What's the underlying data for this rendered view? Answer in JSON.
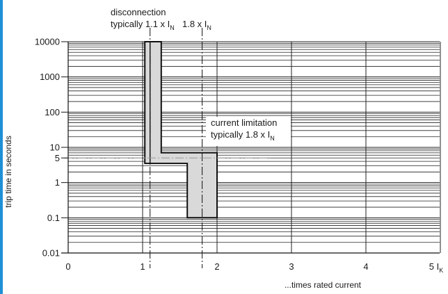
{
  "chart_data": {
    "type": "line",
    "title": "",
    "xlabel": "...times rated current",
    "ylabel": "trip time in seconds",
    "x_scale": "linear",
    "y_scale": "log",
    "xlim": [
      0,
      5
    ],
    "ylim": [
      0.01,
      10000
    ],
    "x_ticks": [
      {
        "value": 0,
        "label": "0"
      },
      {
        "value": 1,
        "label": "1"
      },
      {
        "value": 2,
        "label": "2"
      },
      {
        "value": 3,
        "label": "3"
      },
      {
        "value": 4,
        "label": "4"
      },
      {
        "value": 5,
        "label": "5 I"
      }
    ],
    "x_tick_last_subscript": "K",
    "y_ticks": [
      {
        "value": 10000,
        "label": "10000"
      },
      {
        "value": 1000,
        "label": "1000"
      },
      {
        "value": 100,
        "label": "100"
      },
      {
        "value": 10,
        "label": "10"
      },
      {
        "value": 5,
        "label": "5"
      },
      {
        "value": 1,
        "label": "1"
      },
      {
        "value": 0.1,
        "label": "0.1"
      },
      {
        "value": 0.01,
        "label": "0.01"
      }
    ],
    "grid": true,
    "trip_band": {
      "fill": "#d9d9d9",
      "outline": [
        {
          "x": 1.03,
          "y": 10000
        },
        {
          "x": 1.25,
          "y": 10000
        },
        {
          "x": 1.25,
          "y": 7
        },
        {
          "x": 2.0,
          "y": 7
        },
        {
          "x": 2.0,
          "y": 0.1
        },
        {
          "x": 1.6,
          "y": 0.1
        },
        {
          "x": 1.6,
          "y": 3.5
        },
        {
          "x": 1.03,
          "y": 3.5
        }
      ],
      "inner_curve": [
        {
          "x": 1.1,
          "y": 10000
        },
        {
          "x": 1.1,
          "y": 3.5
        }
      ]
    },
    "reference_lines": [
      {
        "orientation": "vertical",
        "x": 1.1,
        "label_key": "disconnection"
      },
      {
        "orientation": "vertical",
        "x": 1.8,
        "label_key": "limit"
      },
      {
        "orientation": "horizontal",
        "y": 5
      }
    ],
    "annotations": {
      "disconnection": {
        "line1": "disconnection",
        "line2": "typically 1.1 x I",
        "sub": "N"
      },
      "limit": {
        "text": "1.8 x I",
        "sub": "N"
      },
      "current_limitation": {
        "line1": "current limitation",
        "line2": "typically 1.8 x I",
        "sub": "N"
      }
    }
  }
}
